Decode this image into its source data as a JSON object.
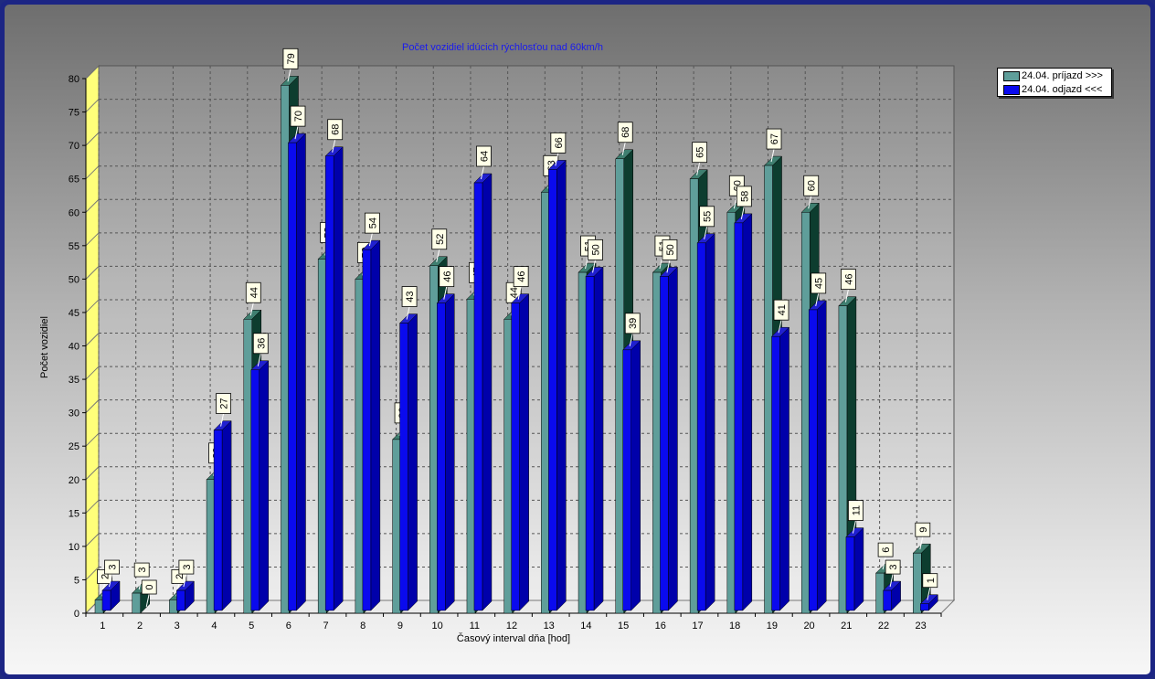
{
  "chart_data": {
    "type": "bar",
    "title": "Počet vozidiel idúcich rýchlosťou nad 60km/h",
    "xlabel": "Časový interval dňa [hod]",
    "ylabel": "Počet vozidiel",
    "ylim": [
      0,
      80
    ],
    "y_ticks": [
      0,
      5,
      10,
      15,
      20,
      25,
      30,
      35,
      40,
      45,
      50,
      55,
      60,
      65,
      70,
      75,
      80
    ],
    "grid": true,
    "legend_position": "top-right",
    "categories": [
      "1",
      "2",
      "3",
      "4",
      "5",
      "6",
      "7",
      "8",
      "9",
      "10",
      "11",
      "12",
      "13",
      "14",
      "15",
      "16",
      "17",
      "18",
      "19",
      "20",
      "21",
      "22",
      "23"
    ],
    "series": [
      {
        "name": "24.04.  príjazd >>>",
        "color": "#5f9e9a",
        "values": [
          2,
          3,
          2,
          20,
          44,
          79,
          53,
          50,
          26,
          52,
          47,
          44,
          63,
          51,
          68,
          51,
          65,
          60,
          67,
          60,
          46,
          6,
          9
        ]
      },
      {
        "name": "24.04.  odjazd <<<",
        "color": "#0a0aee",
        "values": [
          3,
          0,
          3,
          27,
          36,
          70,
          68,
          54,
          43,
          46,
          64,
          46,
          66,
          50,
          39,
          50,
          55,
          58,
          41,
          45,
          11,
          3,
          1
        ]
      }
    ]
  }
}
